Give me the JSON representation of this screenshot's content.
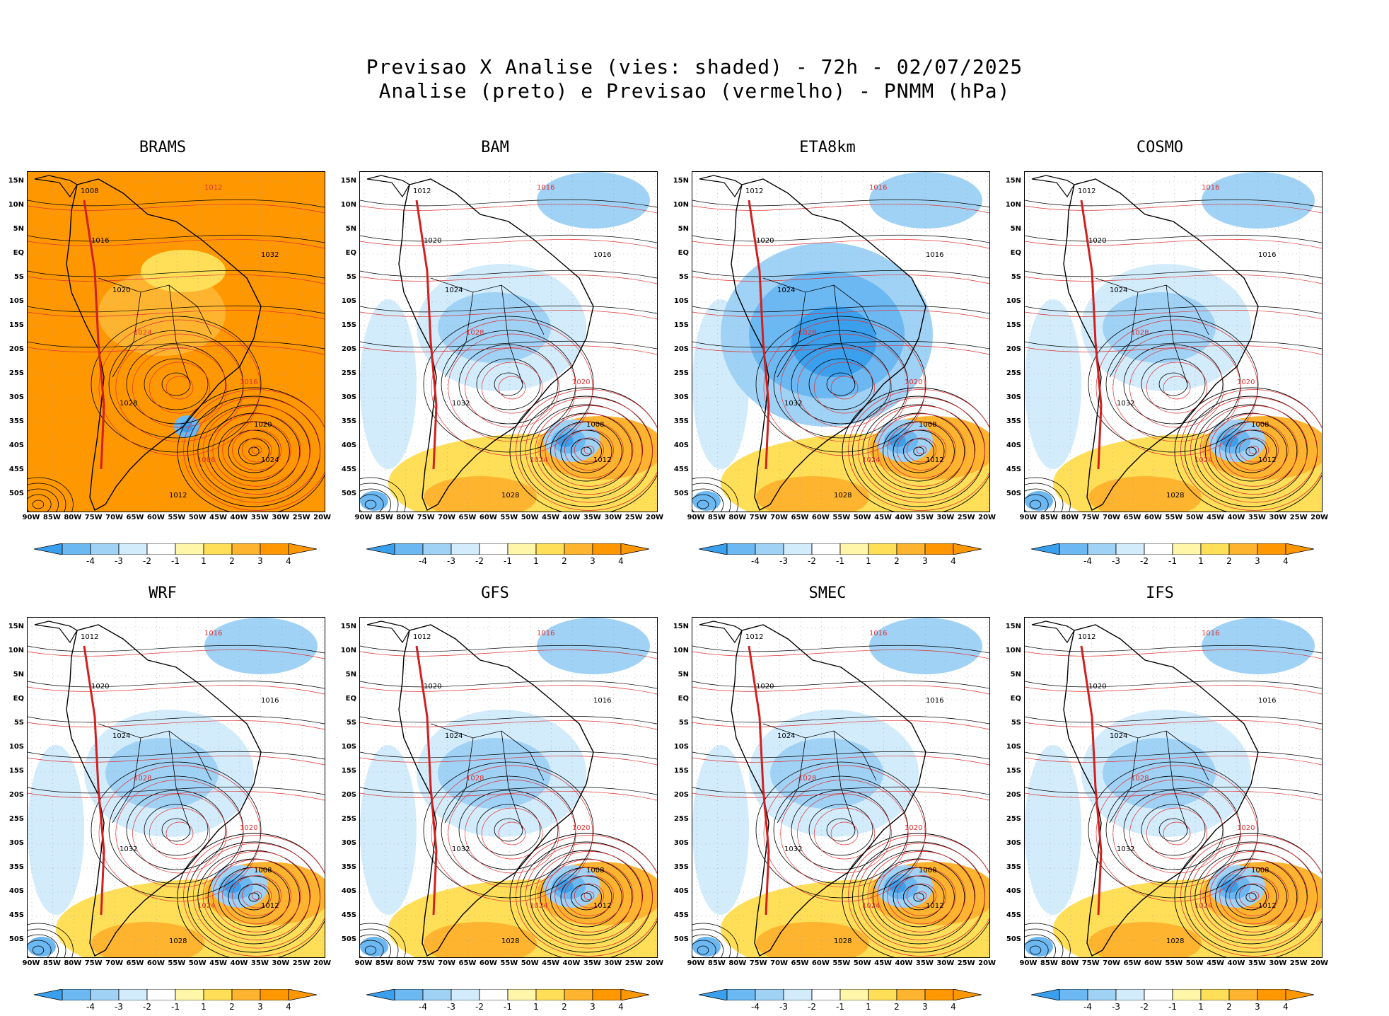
{
  "header": {
    "line1": "Previsao X Analise (vies: shaded) - 72h - 02/07/2025",
    "line2": "Analise (preto) e Previsao (vermelho) - PNMM (hPa)"
  },
  "lat_labels": [
    "15N",
    "10N",
    "5N",
    "EQ",
    "5S",
    "10S",
    "15S",
    "20S",
    "25S",
    "30S",
    "35S",
    "40S",
    "45S",
    "50S"
  ],
  "lon_labels": [
    "90W",
    "85W",
    "80W",
    "75W",
    "70W",
    "65W",
    "60W",
    "55W",
    "50W",
    "45W",
    "40W",
    "35W",
    "30W",
    "25W",
    "20W"
  ],
  "colorbar": {
    "labels": [
      "-4",
      "-3",
      "-2",
      "-1",
      "1",
      "2",
      "3",
      "4"
    ],
    "colors": [
      "#3aa0ee",
      "#6cb8f2",
      "#a0d2f6",
      "#d2ecfc",
      "#ffffff",
      "#fff6aa",
      "#ffdf58",
      "#ffb430",
      "#ff9800"
    ]
  },
  "panels": [
    {
      "name": "BRAMS",
      "bias": "warm-all",
      "isobars": [
        "1008",
        "1012",
        "1016",
        "1020",
        "1024",
        "1028",
        "1032",
        "1016",
        "1020",
        "1024",
        "1008",
        "1012"
      ]
    },
    {
      "name": "BAM",
      "bias": "mixed",
      "isobars": [
        "1012",
        "1016",
        "1020",
        "1024",
        "1028",
        "1032",
        "1016",
        "1020",
        "1008",
        "1012",
        "1024",
        "1028"
      ]
    },
    {
      "name": "ETA8km",
      "bias": "cold-land",
      "isobars": [
        "1012",
        "1016",
        "1020",
        "1024",
        "1028",
        "1032",
        "1016",
        "1020",
        "1008",
        "1012",
        "1024",
        "1028"
      ]
    },
    {
      "name": "COSMO",
      "bias": "mixed",
      "isobars": [
        "1012",
        "1016",
        "1020",
        "1024",
        "1028",
        "1032",
        "1016",
        "1020",
        "1008",
        "1012",
        "1024",
        "1028"
      ]
    },
    {
      "name": "WRF",
      "bias": "mixed",
      "isobars": [
        "1012",
        "1016",
        "1020",
        "1024",
        "1028",
        "1032",
        "1016",
        "1020",
        "1008",
        "1012",
        "1024",
        "1028"
      ]
    },
    {
      "name": "GFS",
      "bias": "mixed",
      "isobars": [
        "1012",
        "1016",
        "1020",
        "1024",
        "1028",
        "1032",
        "1016",
        "1020",
        "1008",
        "1012",
        "1024",
        "1028"
      ]
    },
    {
      "name": "SMEC",
      "bias": "mixed",
      "isobars": [
        "1012",
        "1016",
        "1020",
        "1024",
        "1028",
        "1032",
        "1016",
        "1020",
        "1008",
        "1012",
        "1024",
        "1028"
      ]
    },
    {
      "name": "IFS",
      "bias": "mixed",
      "isobars": [
        "1012",
        "1016",
        "1020",
        "1024",
        "1028",
        "1032",
        "1016",
        "1020",
        "1008",
        "1012",
        "1024",
        "1028"
      ]
    }
  ]
}
